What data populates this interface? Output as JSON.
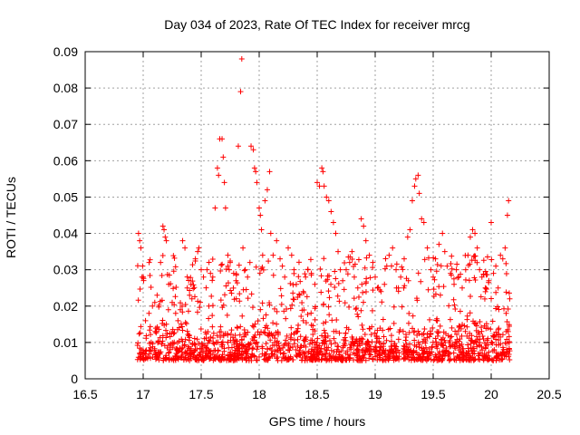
{
  "chart_data": {
    "type": "scatter",
    "title": "Day 034 of 2023, Rate Of TEC Index for receiver mrcg",
    "xlabel": "GPS time / hours",
    "ylabel": "ROTI / TECUs",
    "xlim": [
      16.5,
      20.5
    ],
    "ylim": [
      0,
      0.09
    ],
    "xticks": [
      "16.5",
      "17",
      "17.5",
      "18",
      "18.5",
      "19",
      "19.5",
      "20",
      "20.5"
    ],
    "yticks": [
      "0",
      "0.01",
      "0.02",
      "0.03",
      "0.04",
      "0.05",
      "0.06",
      "0.07",
      "0.08",
      "0.09"
    ],
    "grid": true,
    "marker": "+",
    "color": "#ff0000",
    "x_range_data": [
      16.95,
      20.16
    ],
    "baseline_band": [
      0.005,
      0.018
    ],
    "series": [
      {
        "name": "ROTI",
        "points": [
          [
            16.96,
            0.04
          ],
          [
            16.97,
            0.038
          ],
          [
            16.98,
            0.036
          ],
          [
            16.99,
            0.028
          ],
          [
            17.0,
            0.028
          ],
          [
            17.02,
            0.016
          ],
          [
            17.05,
            0.018
          ],
          [
            17.08,
            0.02
          ],
          [
            17.1,
            0.021
          ],
          [
            17.12,
            0.023
          ],
          [
            17.15,
            0.032
          ],
          [
            17.17,
            0.042
          ],
          [
            17.18,
            0.041
          ],
          [
            17.19,
            0.039
          ],
          [
            17.2,
            0.038
          ],
          [
            17.22,
            0.026
          ],
          [
            17.25,
            0.021
          ],
          [
            17.28,
            0.018
          ],
          [
            17.3,
            0.016
          ],
          [
            17.32,
            0.019
          ],
          [
            17.34,
            0.038
          ],
          [
            17.36,
            0.036
          ],
          [
            17.38,
            0.025
          ],
          [
            17.4,
            0.023
          ],
          [
            17.42,
            0.022
          ],
          [
            17.45,
            0.033
          ],
          [
            17.47,
            0.035
          ],
          [
            17.48,
            0.036
          ],
          [
            17.5,
            0.03
          ],
          [
            17.52,
            0.028
          ],
          [
            17.55,
            0.03
          ],
          [
            17.58,
            0.029
          ],
          [
            17.6,
            0.028
          ],
          [
            17.62,
            0.047
          ],
          [
            17.64,
            0.058
          ],
          [
            17.65,
            0.056
          ],
          [
            17.66,
            0.066
          ],
          [
            17.68,
            0.066
          ],
          [
            17.69,
            0.061
          ],
          [
            17.7,
            0.054
          ],
          [
            17.71,
            0.047
          ],
          [
            17.73,
            0.034
          ],
          [
            17.75,
            0.032
          ],
          [
            17.78,
            0.029
          ],
          [
            17.8,
            0.027
          ],
          [
            17.82,
            0.064
          ],
          [
            17.84,
            0.079
          ],
          [
            17.85,
            0.088
          ],
          [
            17.86,
            0.036
          ],
          [
            17.88,
            0.03
          ],
          [
            17.9,
            0.028
          ],
          [
            17.93,
            0.064
          ],
          [
            17.95,
            0.063
          ],
          [
            17.96,
            0.058
          ],
          [
            17.97,
            0.057
          ],
          [
            17.98,
            0.054
          ],
          [
            18.0,
            0.047
          ],
          [
            18.01,
            0.045
          ],
          [
            18.02,
            0.041
          ],
          [
            18.03,
            0.034
          ],
          [
            18.05,
            0.049
          ],
          [
            18.07,
            0.052
          ],
          [
            18.09,
            0.057
          ],
          [
            18.1,
            0.04
          ],
          [
            18.12,
            0.034
          ],
          [
            18.15,
            0.038
          ],
          [
            18.18,
            0.033
          ],
          [
            18.2,
            0.031
          ],
          [
            18.22,
            0.028
          ],
          [
            18.25,
            0.036
          ],
          [
            18.28,
            0.034
          ],
          [
            18.3,
            0.03
          ],
          [
            18.32,
            0.026
          ],
          [
            18.35,
            0.023
          ],
          [
            18.38,
            0.024
          ],
          [
            18.4,
            0.028
          ],
          [
            18.42,
            0.03
          ],
          [
            18.45,
            0.029
          ],
          [
            18.48,
            0.026
          ],
          [
            18.5,
            0.054
          ],
          [
            18.52,
            0.053
          ],
          [
            18.54,
            0.058
          ],
          [
            18.55,
            0.057
          ],
          [
            18.56,
            0.053
          ],
          [
            18.58,
            0.05
          ],
          [
            18.6,
            0.049
          ],
          [
            18.62,
            0.046
          ],
          [
            18.64,
            0.043
          ],
          [
            18.66,
            0.04
          ],
          [
            18.68,
            0.035
          ],
          [
            18.7,
            0.03
          ],
          [
            18.72,
            0.027
          ],
          [
            18.75,
            0.03
          ],
          [
            18.78,
            0.032
          ],
          [
            18.8,
            0.035
          ],
          [
            18.82,
            0.028
          ],
          [
            18.85,
            0.025
          ],
          [
            18.88,
            0.044
          ],
          [
            18.9,
            0.042
          ],
          [
            18.92,
            0.038
          ],
          [
            18.95,
            0.034
          ],
          [
            18.98,
            0.032
          ],
          [
            19.0,
            0.028
          ],
          [
            19.02,
            0.025
          ],
          [
            19.05,
            0.024
          ],
          [
            19.08,
            0.026
          ],
          [
            19.1,
            0.031
          ],
          [
            19.12,
            0.034
          ],
          [
            19.15,
            0.036
          ],
          [
            19.18,
            0.03
          ],
          [
            19.2,
            0.025
          ],
          [
            19.22,
            0.028
          ],
          [
            19.25,
            0.033
          ],
          [
            19.28,
            0.039
          ],
          [
            19.3,
            0.041
          ],
          [
            19.32,
            0.049
          ],
          [
            19.34,
            0.053
          ],
          [
            19.35,
            0.055
          ],
          [
            19.37,
            0.056
          ],
          [
            19.38,
            0.051
          ],
          [
            19.4,
            0.044
          ],
          [
            19.42,
            0.043
          ],
          [
            19.45,
            0.036
          ],
          [
            19.48,
            0.03
          ],
          [
            19.5,
            0.028
          ],
          [
            19.52,
            0.033
          ],
          [
            19.55,
            0.037
          ],
          [
            19.58,
            0.04
          ],
          [
            19.6,
            0.035
          ],
          [
            19.62,
            0.031
          ],
          [
            19.65,
            0.029
          ],
          [
            19.68,
            0.026
          ],
          [
            19.7,
            0.03
          ],
          [
            19.72,
            0.028
          ],
          [
            19.75,
            0.025
          ],
          [
            19.78,
            0.03
          ],
          [
            19.8,
            0.034
          ],
          [
            19.82,
            0.039
          ],
          [
            19.84,
            0.041
          ],
          [
            19.86,
            0.04
          ],
          [
            19.88,
            0.036
          ],
          [
            19.9,
            0.03
          ],
          [
            19.92,
            0.028
          ],
          [
            19.95,
            0.025
          ],
          [
            19.98,
            0.027
          ],
          [
            20.0,
            0.043
          ],
          [
            20.02,
            0.029
          ],
          [
            20.04,
            0.031
          ],
          [
            20.06,
            0.025
          ],
          [
            20.08,
            0.034
          ],
          [
            20.1,
            0.033
          ],
          [
            20.12,
            0.036
          ],
          [
            20.14,
            0.045
          ],
          [
            20.15,
            0.049
          ],
          [
            20.16,
            0.022
          ]
        ]
      }
    ]
  }
}
